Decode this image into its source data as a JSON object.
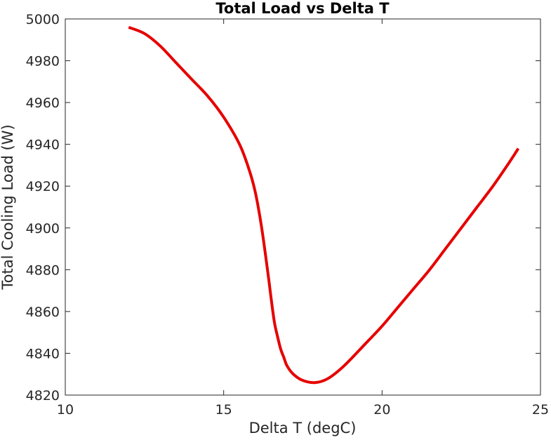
{
  "chart_data": {
    "type": "line",
    "title": "Total Load vs Delta T",
    "xlabel": "Delta T (degC)",
    "ylabel": "Total Cooling Load (W)",
    "xlim": [
      10,
      25
    ],
    "ylim": [
      4820,
      5000
    ],
    "xticks": [
      "10",
      "15",
      "20",
      "25"
    ],
    "yticks": [
      "4820",
      "4840",
      "4860",
      "4880",
      "4900",
      "4920",
      "4940",
      "4960",
      "4980",
      "5000"
    ],
    "grid": false,
    "legend": "none",
    "series": [
      {
        "color": "#e60000",
        "x": [
          12.0,
          12.5,
          13.0,
          13.5,
          14.0,
          14.5,
          15.0,
          15.5,
          15.8,
          16.0,
          16.2,
          16.4,
          16.5,
          16.6,
          16.7,
          16.8,
          16.9,
          17.0,
          17.2,
          17.5,
          17.9,
          18.3,
          18.8,
          19.5,
          20.0,
          20.5,
          21.0,
          21.5,
          22.0,
          22.5,
          23.0,
          23.5,
          24.0,
          24.3
        ],
        "y": [
          4996,
          4993,
          4987,
          4979,
          4971,
          4963,
          4953,
          4940,
          4928,
          4917,
          4900,
          4878,
          4866,
          4855,
          4848,
          4842,
          4838,
          4834,
          4830,
          4827,
          4826,
          4828,
          4834,
          4845,
          4853,
          4862,
          4871,
          4880,
          4890,
          4900,
          4910,
          4920,
          4931,
          4938
        ]
      }
    ]
  }
}
